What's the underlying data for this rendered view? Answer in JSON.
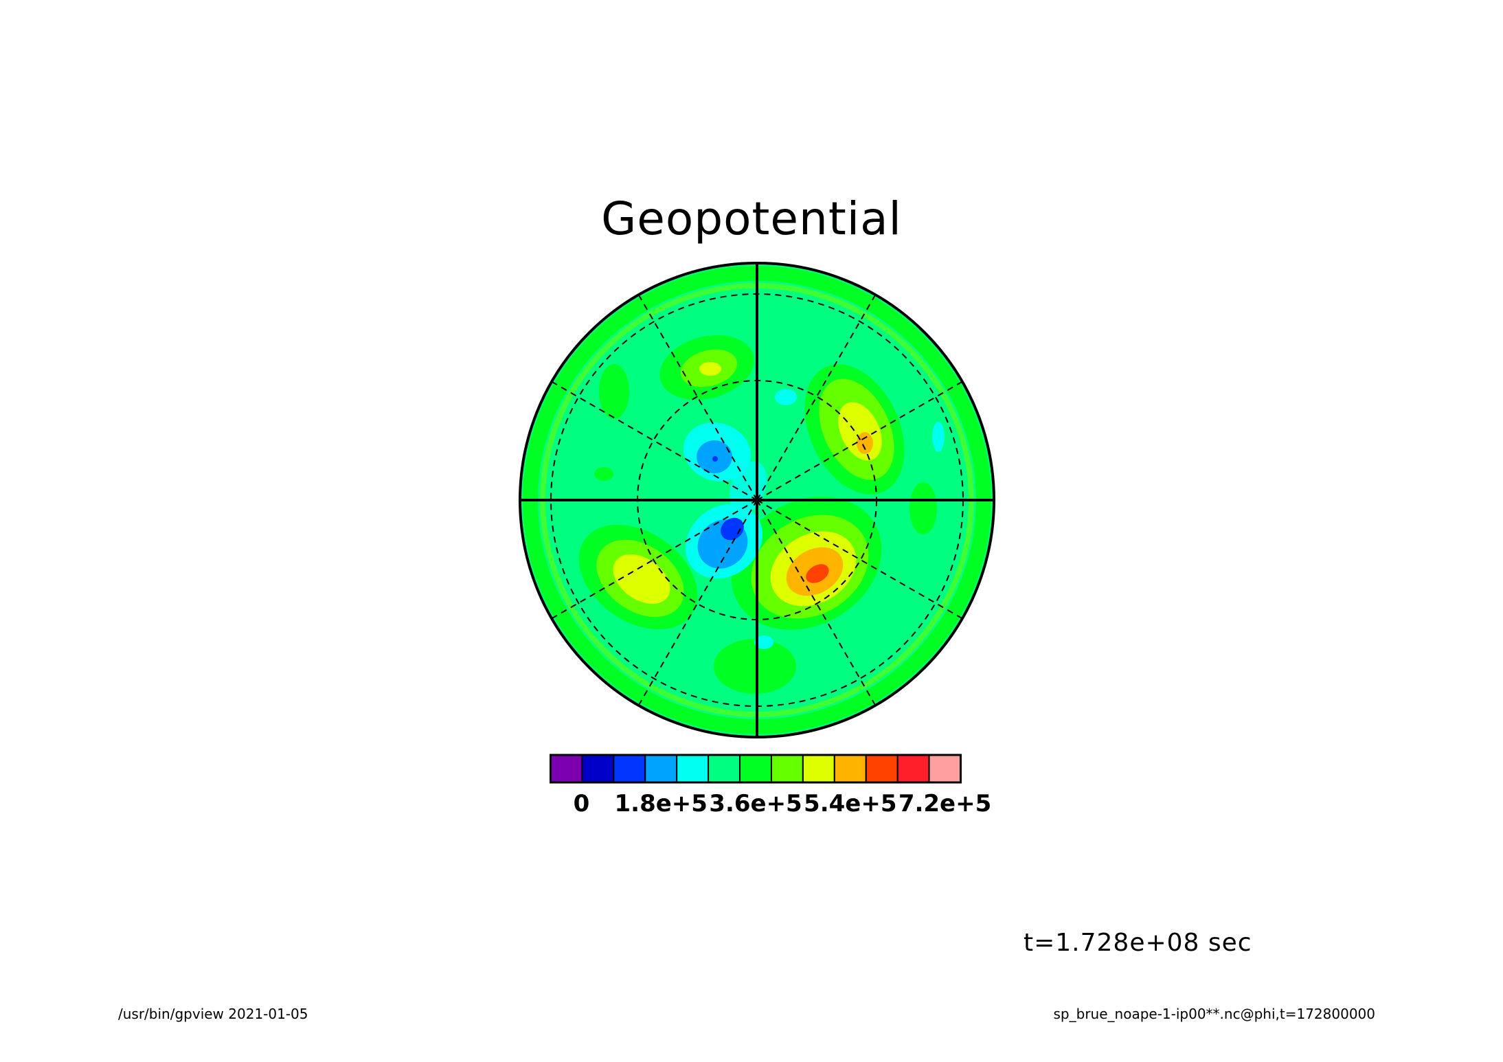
{
  "title": "Geopotential",
  "time_label": "t=1.728e+08 sec",
  "footer": {
    "left": "/usr/bin/gpview   2021-01-05",
    "right": "sp_brue_noape-1-ip00**.nc@phi,t=172800000"
  },
  "colors": {
    "background_field": "#00FF66",
    "frame": "#000000"
  },
  "colorbar": {
    "colors": [
      "#7B00B0",
      "#0000C8",
      "#0036FF",
      "#00A4FF",
      "#00FFF0",
      "#00FF80",
      "#00FF22",
      "#66FF00",
      "#DDFF00",
      "#FFB400",
      "#FF4200",
      "#FF1F2A",
      "#FFA0A0"
    ],
    "tick_labels": [
      "0",
      "1.8e+5",
      "3.6e+5",
      "5.4e+5",
      "7.2e+5"
    ],
    "tick_index": [
      1,
      4,
      7,
      10,
      13
    ]
  },
  "map_data": {
    "projection": "polar stereographic",
    "meridian_lines_deg": [
      0,
      30,
      60,
      90,
      120,
      150,
      180,
      210,
      240,
      270,
      300,
      330
    ],
    "latitude_circles": 3,
    "anomalies": [
      {
        "name": "high-southeast",
        "level": 11,
        "direction": "lower-right"
      },
      {
        "name": "high-northeast",
        "level": 10,
        "direction": "upper-right"
      },
      {
        "name": "high-southwest",
        "level": 9,
        "direction": "lower-left"
      },
      {
        "name": "high-north",
        "level": 9,
        "direction": "upper-left"
      },
      {
        "name": "low-center-south",
        "level": 2,
        "direction": "lower-left"
      },
      {
        "name": "low-center-north",
        "level": 3,
        "direction": "upper-left"
      }
    ]
  }
}
